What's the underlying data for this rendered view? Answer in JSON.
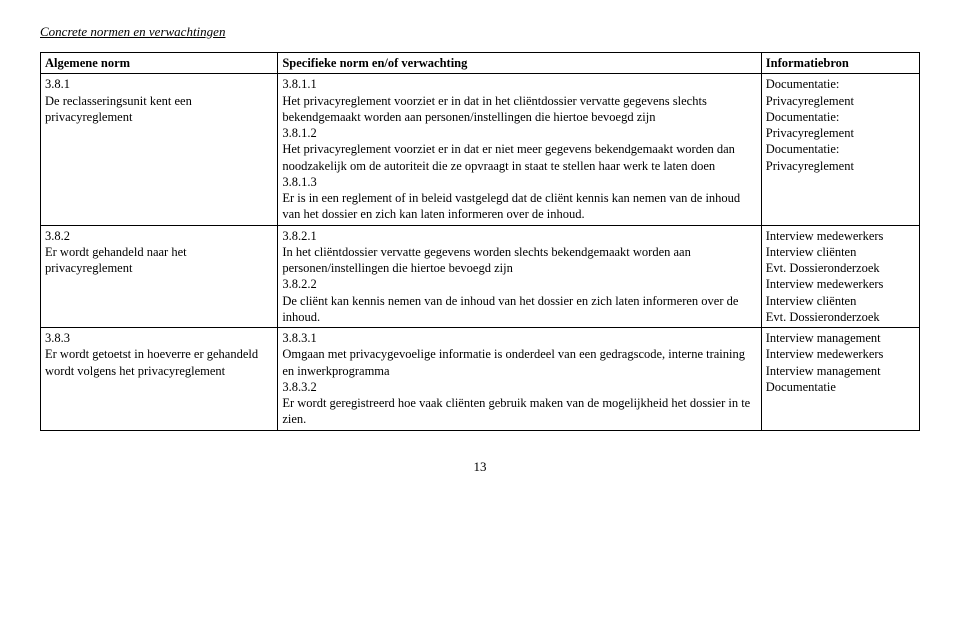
{
  "section_title": "Concrete normen en verwachtingen",
  "headers": {
    "col1": "Algemene norm",
    "col2": "Specifieke norm en/of verwachting",
    "col3": "Informatiebron"
  },
  "rows": [
    {
      "c1": {
        "num": "3.8.1",
        "text": "De reclasseringsunit kent een privacyreglement"
      },
      "c2": [
        {
          "num": "3.8.1.1",
          "text": "Het privacyreglement voorziet er in dat in het cliëntdossier vervatte gegevens slechts bekendgemaakt worden aan personen/instellingen die hiertoe bevoegd zijn"
        },
        {
          "num": "3.8.1.2",
          "text": "Het privacyreglement voorziet er in dat er niet meer gegevens bekendgemaakt worden dan noodzakelijk om de autoriteit die ze opvraagt in staat te stellen haar werk te laten doen"
        },
        {
          "num": "3.8.1.3",
          "text": "Er is in een reglement of in beleid vastgelegd dat de cliënt kennis kan nemen van de inhoud van het dossier en zich kan laten informeren over de inhoud."
        }
      ],
      "c3": [
        {
          "line1": "Documentatie:",
          "line2": "Privacyreglement"
        },
        {
          "line1": "Documentatie:",
          "line2": "Privacyreglement"
        },
        {
          "line1": "Documentatie:",
          "line2": "Privacyreglement"
        }
      ]
    },
    {
      "c1": {
        "num": "3.8.2",
        "text": "Er wordt gehandeld naar het privacyreglement"
      },
      "c2": [
        {
          "num": "3.8.2.1",
          "text": "In het cliëntdossier vervatte gegevens worden slechts bekendgemaakt worden aan personen/instellingen die hiertoe bevoegd zijn"
        },
        {
          "num": "3.8.2.2",
          "text": "De cliënt kan kennis nemen van de inhoud van het dossier en zich laten informeren over de inhoud."
        }
      ],
      "c3": [
        {
          "line1": "Interview medewerkers",
          "line2": "Interview cliënten",
          "line3": "Evt. Dossieronderzoek"
        },
        {
          "line1": "Interview medewerkers",
          "line2": "Interview cliënten",
          "line3": "Evt. Dossieronderzoek"
        }
      ]
    },
    {
      "c1": {
        "num": "3.8.3",
        "text": "Er wordt getoetst in hoeverre er gehandeld wordt volgens het privacyreglement"
      },
      "c2": [
        {
          "num": "3.8.3.1",
          "text": "Omgaan met privacygevoelige informatie is onderdeel van een gedragscode, interne training en inwerkprogramma"
        },
        {
          "num": "3.8.3.2",
          "text": "Er wordt geregistreerd hoe vaak cliënten gebruik maken van de mogelijkheid het dossier in te zien."
        }
      ],
      "c3": [
        {
          "line1": "Interview management",
          "line2": "Interview medewerkers"
        },
        {
          "line1": "Interview management",
          "line2": "Documentatie"
        }
      ]
    }
  ],
  "page_number": "13"
}
